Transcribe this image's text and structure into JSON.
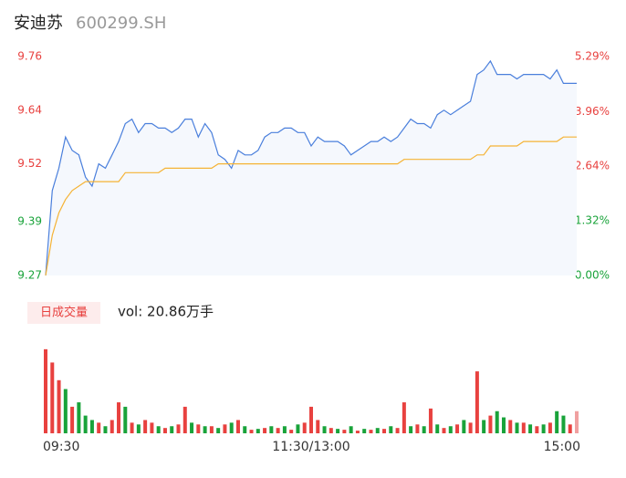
{
  "header": {
    "name": "安迪苏",
    "code": "600299.SH"
  },
  "chart_data": [
    {
      "type": "line",
      "x": [
        0,
        3,
        6,
        9,
        12,
        15,
        18,
        21,
        24,
        27,
        30,
        33,
        36,
        39,
        42,
        45,
        48,
        51,
        54,
        57,
        60,
        63,
        66,
        69,
        72,
        75,
        78,
        81,
        84,
        87,
        90,
        93,
        96,
        99,
        102,
        105,
        108,
        111,
        114,
        117,
        120,
        123,
        126,
        129,
        132,
        135,
        138,
        141,
        144,
        147,
        150,
        153,
        156,
        159,
        162,
        165,
        168,
        171,
        174,
        177,
        180,
        183,
        186,
        189,
        192,
        195,
        198,
        201,
        204,
        207,
        210,
        213,
        216,
        219,
        222,
        225,
        228,
        231,
        234,
        237,
        240
      ],
      "series": [
        {
          "color": "#4a7fdc",
          "fill": "#f5f8fd",
          "values": [
            9.27,
            9.46,
            9.51,
            9.58,
            9.55,
            9.54,
            9.49,
            9.47,
            9.52,
            9.51,
            9.54,
            9.57,
            9.61,
            9.62,
            9.59,
            9.61,
            9.61,
            9.6,
            9.6,
            9.59,
            9.6,
            9.62,
            9.62,
            9.58,
            9.61,
            9.59,
            9.54,
            9.53,
            9.51,
            9.55,
            9.54,
            9.54,
            9.55,
            9.58,
            9.59,
            9.59,
            9.6,
            9.6,
            9.59,
            9.59,
            9.56,
            9.58,
            9.57,
            9.57,
            9.57,
            9.56,
            9.54,
            9.55,
            9.56,
            9.57,
            9.57,
            9.58,
            9.57,
            9.58,
            9.6,
            9.62,
            9.61,
            9.61,
            9.6,
            9.63,
            9.64,
            9.63,
            9.64,
            9.65,
            9.66,
            9.72,
            9.73,
            9.75,
            9.72,
            9.72,
            9.72,
            9.71,
            9.72,
            9.72,
            9.72,
            9.72,
            9.71,
            9.73,
            9.7,
            9.7,
            9.7
          ]
        },
        {
          "color": "#f5b335",
          "values": [
            9.27,
            9.36,
            9.41,
            9.44,
            9.46,
            9.47,
            9.48,
            9.48,
            9.48,
            9.48,
            9.48,
            9.48,
            9.5,
            9.5,
            9.5,
            9.5,
            9.5,
            9.5,
            9.51,
            9.51,
            9.51,
            9.51,
            9.51,
            9.51,
            9.51,
            9.51,
            9.52,
            9.52,
            9.52,
            9.52,
            9.52,
            9.52,
            9.52,
            9.52,
            9.52,
            9.52,
            9.52,
            9.52,
            9.52,
            9.52,
            9.52,
            9.52,
            9.52,
            9.52,
            9.52,
            9.52,
            9.52,
            9.52,
            9.52,
            9.52,
            9.52,
            9.52,
            9.52,
            9.52,
            9.53,
            9.53,
            9.53,
            9.53,
            9.53,
            9.53,
            9.53,
            9.53,
            9.53,
            9.53,
            9.53,
            9.54,
            9.54,
            9.56,
            9.56,
            9.56,
            9.56,
            9.56,
            9.57,
            9.57,
            9.57,
            9.57,
            9.57,
            9.57,
            9.58,
            9.58,
            9.58
          ]
        }
      ],
      "xlim": [
        0,
        240
      ],
      "ylim": [
        9.27,
        9.76
      ],
      "yticks": [
        {
          "value": 9.76,
          "label": "9.76"
        },
        {
          "value": 9.64,
          "label": "9.64"
        },
        {
          "value": 9.52,
          "label": "9.52"
        },
        {
          "value": 9.39,
          "label": "9.39"
        },
        {
          "value": 9.27,
          "label": "9.27"
        }
      ],
      "ytick_colors": [
        "#e8413f",
        "#e8413f",
        "#e8413f",
        "#19a33a",
        "#19a33a"
      ],
      "y2lim": [
        0,
        5.29
      ],
      "y2ticks": [
        {
          "value": 5.29,
          "label": "5.29%"
        },
        {
          "value": 3.96,
          "label": "3.96%"
        },
        {
          "value": 2.64,
          "label": "2.64%"
        },
        {
          "value": 1.32,
          "label": "1.32%"
        },
        {
          "value": 0,
          "label": "0.00%"
        }
      ],
      "y2tick_colors": [
        "#e8413f",
        "#e8413f",
        "#e8413f",
        "#19a33a",
        "#19a33a"
      ]
    },
    {
      "type": "bar",
      "title": "日成交量",
      "subtitle": "vol: 20.86万手",
      "x": [
        0,
        3,
        6,
        9,
        12,
        15,
        18,
        21,
        24,
        27,
        30,
        33,
        36,
        39,
        42,
        45,
        48,
        51,
        54,
        57,
        60,
        63,
        66,
        69,
        72,
        75,
        78,
        81,
        84,
        87,
        90,
        93,
        96,
        99,
        102,
        105,
        108,
        111,
        114,
        117,
        120,
        123,
        126,
        129,
        132,
        135,
        138,
        141,
        144,
        147,
        150,
        153,
        156,
        159,
        162,
        165,
        168,
        171,
        174,
        177,
        180,
        183,
        186,
        189,
        192,
        195,
        198,
        201,
        204,
        207,
        210,
        213,
        216,
        219,
        222,
        225,
        228,
        231,
        234,
        237,
        240
      ],
      "values": [
        95,
        80,
        60,
        50,
        30,
        35,
        20,
        15,
        12,
        8,
        15,
        35,
        30,
        12,
        10,
        15,
        12,
        8,
        6,
        8,
        10,
        30,
        12,
        10,
        8,
        8,
        6,
        10,
        12,
        15,
        8,
        4,
        5,
        6,
        8,
        6,
        8,
        4,
        10,
        12,
        30,
        15,
        8,
        6,
        5,
        4,
        8,
        3,
        5,
        4,
        6,
        5,
        8,
        6,
        35,
        8,
        10,
        8,
        28,
        10,
        6,
        8,
        10,
        15,
        12,
        70,
        15,
        20,
        25,
        18,
        15,
        12,
        12,
        10,
        8,
        10,
        12,
        25,
        20,
        10,
        25
      ],
      "colors": [
        "#e8413f",
        "#e8413f",
        "#e8413f",
        "#19a33a",
        "#e8413f",
        "#19a33a",
        "#19a33a",
        "#19a33a",
        "#e8413f",
        "#19a33a",
        "#e8413f",
        "#e8413f",
        "#19a33a",
        "#e8413f",
        "#19a33a",
        "#e8413f",
        "#e8413f",
        "#19a33a",
        "#e8413f",
        "#19a33a",
        "#e8413f",
        "#e8413f",
        "#19a33a",
        "#e8413f",
        "#19a33a",
        "#e8413f",
        "#19a33a",
        "#e8413f",
        "#19a33a",
        "#e8413f",
        "#19a33a",
        "#e8413f",
        "#19a33a",
        "#e8413f",
        "#19a33a",
        "#e8413f",
        "#19a33a",
        "#e8413f",
        "#19a33a",
        "#e8413f",
        "#e8413f",
        "#e8413f",
        "#19a33a",
        "#e8413f",
        "#19a33a",
        "#e8413f",
        "#19a33a",
        "#e8413f",
        "#19a33a",
        "#e8413f",
        "#19a33a",
        "#e8413f",
        "#19a33a",
        "#e8413f",
        "#e8413f",
        "#19a33a",
        "#e8413f",
        "#19a33a",
        "#e8413f",
        "#19a33a",
        "#e8413f",
        "#19a33a",
        "#e8413f",
        "#19a33a",
        "#e8413f",
        "#e8413f",
        "#19a33a",
        "#e8413f",
        "#19a33a",
        "#19a33a",
        "#e8413f",
        "#19a33a",
        "#e8413f",
        "#19a33a",
        "#e8413f",
        "#19a33a",
        "#e8413f",
        "#19a33a",
        "#19a33a",
        "#e8413f",
        "#f0a0a0"
      ],
      "xlim": [
        0,
        240
      ],
      "ylim": [
        0,
        100
      ],
      "xticks": [
        {
          "value": 0,
          "label": "09:30"
        },
        {
          "value": 120,
          "label": "11:30/13:00"
        },
        {
          "value": 240,
          "label": "15:00"
        }
      ]
    }
  ]
}
